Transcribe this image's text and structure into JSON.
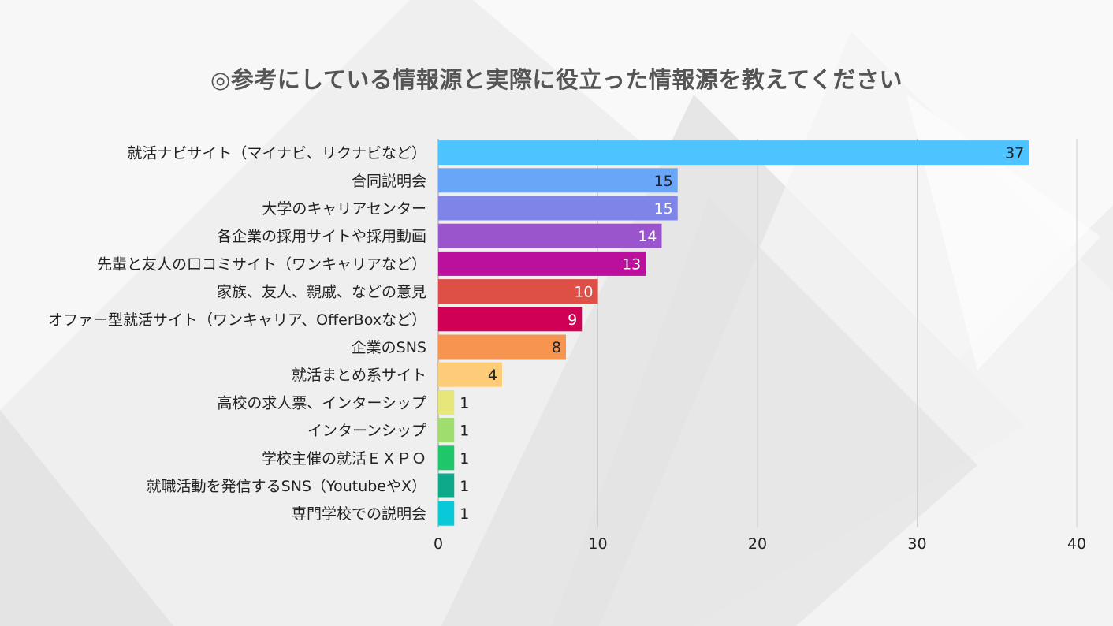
{
  "title": "◎参考にしている情報源と実際に役立った情報源を教えてください",
  "chart_data": {
    "type": "bar",
    "orientation": "horizontal",
    "title": "◎参考にしている情報源と実際に役立った情報源を教えてください",
    "xlabel": "",
    "ylabel": "",
    "xlim": [
      0,
      40
    ],
    "ticks": [
      0,
      10,
      20,
      30,
      40
    ],
    "grid": true,
    "categories": [
      "就活ナビサイト（マイナビ、リクナビなど）",
      "合同説明会",
      "大学のキャリアセンター",
      "各企業の採用サイトや採用動画",
      "先輩と友人の口コミサイト（ワンキャリアなど）",
      "家族、友人、親戚、などの意見",
      "オファー型就活サイト（ワンキャリア、OfferBoxなど）",
      "企業のSNS",
      "就活まとめ系サイト",
      "高校の求人票、インターシップ",
      "インターンシップ",
      "学校主催の就活ＥＸＰＯ",
      "就職活動を発信するSNS（YoutubeやX）",
      "専門学校での説明会"
    ],
    "values": [
      37,
      15,
      15,
      14,
      13,
      10,
      9,
      8,
      4,
      1,
      1,
      1,
      1,
      1
    ],
    "colors": [
      "#4dc3ff",
      "#6aa6f8",
      "#7e84e8",
      "#9a55cc",
      "#bb0f9e",
      "#de5046",
      "#d10057",
      "#f79450",
      "#fccc78",
      "#e6e67a",
      "#9edd6e",
      "#1fc76a",
      "#0ea88a",
      "#09c9d9"
    ]
  }
}
